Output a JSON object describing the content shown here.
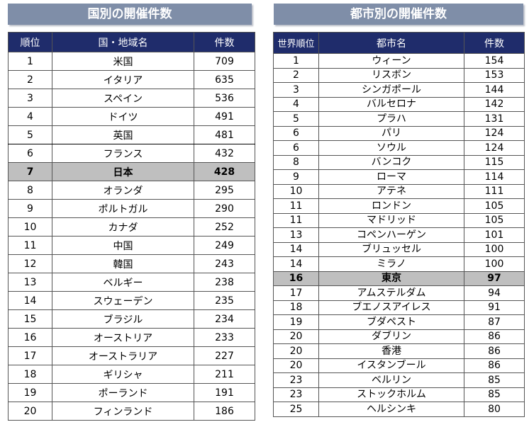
{
  "left": {
    "title": "国別の開催件数",
    "headers": [
      "順位",
      "国・地域名",
      "件数"
    ],
    "rows": [
      [
        "1",
        "米国",
        "709"
      ],
      [
        "2",
        "イタリア",
        "635"
      ],
      [
        "3",
        "スペイン",
        "536"
      ],
      [
        "4",
        "ドイツ",
        "491"
      ],
      [
        "5",
        "英国",
        "481"
      ],
      [
        "6",
        "フランス",
        "432"
      ],
      [
        "7",
        "日本",
        "428"
      ],
      [
        "8",
        "オランダ",
        "295"
      ],
      [
        "9",
        "ポルトガル",
        "290"
      ],
      [
        "10",
        "カナダ",
        "252"
      ],
      [
        "11",
        "中国",
        "249"
      ],
      [
        "12",
        "韓国",
        "243"
      ],
      [
        "13",
        "ベルギー",
        "238"
      ],
      [
        "14",
        "スウェーデン",
        "235"
      ],
      [
        "15",
        "ブラジル",
        "234"
      ],
      [
        "16",
        "オーストリア",
        "233"
      ],
      [
        "17",
        "オーストラリア",
        "227"
      ],
      [
        "18",
        "ギリシャ",
        "211"
      ],
      [
        "19",
        "ポーランド",
        "191"
      ],
      [
        "20",
        "フィンランド",
        "186"
      ]
    ],
    "highlight_row": 6,
    "boxed_row": 4
  },
  "right": {
    "title": "都市別の開催件数",
    "headers": [
      "世界順位",
      "都市名",
      "件数"
    ],
    "rows": [
      [
        "1",
        "ウィーン",
        "154"
      ],
      [
        "2",
        "リスボン",
        "153"
      ],
      [
        "3",
        "シンガポール",
        "144"
      ],
      [
        "4",
        "バルセロナ",
        "142"
      ],
      [
        "5",
        "プラハ",
        "131"
      ],
      [
        "6",
        "パリ",
        "124"
      ],
      [
        "6",
        "ソウル",
        "124"
      ],
      [
        "8",
        "バンコク",
        "115"
      ],
      [
        "9",
        "ローマ",
        "114"
      ],
      [
        "10",
        "アテネ",
        "111"
      ],
      [
        "11",
        "ロンドン",
        "105"
      ],
      [
        "11",
        "マドリッド",
        "105"
      ],
      [
        "13",
        "コペンハーゲン",
        "101"
      ],
      [
        "14",
        "ブリュッセル",
        "100"
      ],
      [
        "14",
        "ミラノ",
        "100"
      ],
      [
        "16",
        "東京",
        "97"
      ],
      [
        "17",
        "アムステルダム",
        "94"
      ],
      [
        "18",
        "ブエノスアイレス",
        "91"
      ],
      [
        "19",
        "ブダペスト",
        "87"
      ],
      [
        "20",
        "ダブリン",
        "86"
      ],
      [
        "20",
        "香港",
        "86"
      ],
      [
        "20",
        "イスタンブール",
        "86"
      ],
      [
        "23",
        "ベルリン",
        "85"
      ],
      [
        "23",
        "ストックホルム",
        "85"
      ],
      [
        "25",
        "ヘルシンキ",
        "80"
      ]
    ],
    "highlight_row": 15
  },
  "colors": {
    "title_bg": "#7f8ea8",
    "header_bg": "#1f2c6b",
    "highlight_bg": "#bfbfbf"
  }
}
